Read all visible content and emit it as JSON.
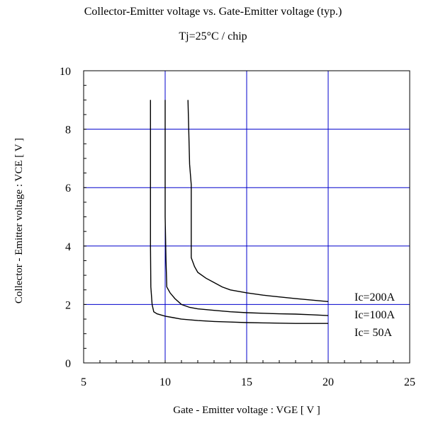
{
  "chart_data": {
    "type": "line",
    "title": "Collector-Emitter voltage  vs. Gate-Emitter voltage (typ.)",
    "subtitle": "Tj=25°C / chip",
    "xlabel": "Gate - Emitter voltage  :  VGE  [ V ]",
    "ylabel": "Collector - Emitter voltage  :  VCE  [ V ]",
    "xlim": [
      5,
      25
    ],
    "ylim": [
      0,
      10
    ],
    "x_ticks": [
      5,
      10,
      15,
      20,
      25
    ],
    "y_ticks": [
      0,
      2,
      4,
      6,
      8,
      10
    ],
    "grid": true,
    "grid_color": "#0000cc",
    "line_color": "#000000",
    "series": [
      {
        "name": "Ic=200A",
        "label": "Ic=200A",
        "points": [
          [
            11.4,
            9.0
          ],
          [
            11.5,
            6.8
          ],
          [
            11.6,
            6.1
          ],
          [
            11.6,
            3.6
          ],
          [
            11.8,
            3.3
          ],
          [
            12.0,
            3.1
          ],
          [
            12.5,
            2.9
          ],
          [
            13.0,
            2.75
          ],
          [
            13.5,
            2.6
          ],
          [
            14.0,
            2.5
          ],
          [
            15.0,
            2.4
          ],
          [
            16.0,
            2.32
          ],
          [
            17.0,
            2.26
          ],
          [
            18.0,
            2.2
          ],
          [
            19.0,
            2.15
          ],
          [
            20.0,
            2.1
          ]
        ]
      },
      {
        "name": "Ic=100A",
        "label": "Ic=100A",
        "points": [
          [
            10.0,
            9.0
          ],
          [
            10.0,
            5.0
          ],
          [
            10.05,
            3.5
          ],
          [
            10.1,
            2.6
          ],
          [
            10.3,
            2.4
          ],
          [
            10.6,
            2.2
          ],
          [
            11.0,
            2.0
          ],
          [
            11.5,
            1.9
          ],
          [
            12.0,
            1.85
          ],
          [
            13.0,
            1.8
          ],
          [
            14.0,
            1.75
          ],
          [
            15.0,
            1.72
          ],
          [
            16.0,
            1.7
          ],
          [
            17.0,
            1.68
          ],
          [
            18.0,
            1.67
          ],
          [
            19.0,
            1.65
          ],
          [
            20.0,
            1.62
          ]
        ]
      },
      {
        "name": "Ic= 50A",
        "label": "Ic= 50A",
        "points": [
          [
            9.1,
            9.0
          ],
          [
            9.1,
            4.0
          ],
          [
            9.12,
            2.6
          ],
          [
            9.2,
            2.0
          ],
          [
            9.3,
            1.75
          ],
          [
            9.5,
            1.68
          ],
          [
            10.0,
            1.6
          ],
          [
            10.5,
            1.55
          ],
          [
            11.0,
            1.5
          ],
          [
            12.0,
            1.45
          ],
          [
            13.0,
            1.42
          ],
          [
            14.0,
            1.4
          ],
          [
            15.0,
            1.38
          ],
          [
            16.0,
            1.37
          ],
          [
            17.0,
            1.36
          ],
          [
            18.0,
            1.35
          ],
          [
            19.0,
            1.35
          ],
          [
            20.0,
            1.35
          ]
        ]
      }
    ]
  }
}
